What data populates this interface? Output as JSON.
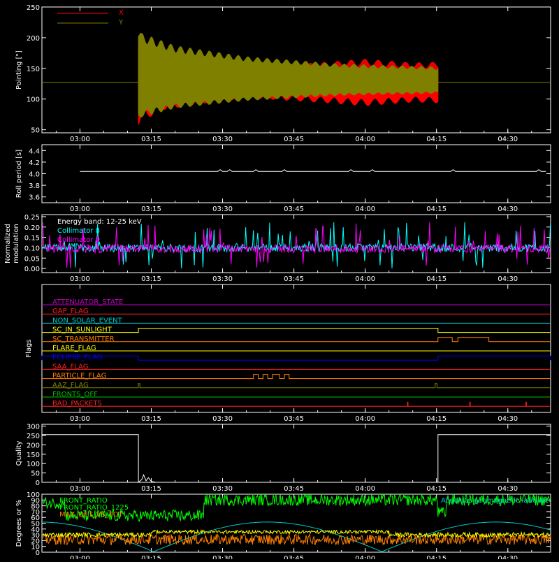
{
  "time_axis": {
    "ticks": [
      "03:00",
      "03:15",
      "03:30",
      "03:45",
      "04:00",
      "04:15",
      "04:30"
    ],
    "tick_minutes": [
      180,
      195,
      210,
      225,
      240,
      255,
      270
    ],
    "range_minutes": [
      172,
      279
    ]
  },
  "colors": {
    "axis": "#ffffff",
    "x_series": "#ff0000",
    "y_series": "#808000",
    "roll": "#ffffff",
    "coll8": "#00ffff",
    "coll9": "#ff00ff",
    "front_ratio": "#00ff00",
    "front_ratio_1225": "#ffff00",
    "max_det": "#ff8000",
    "lat": "#00c8c8"
  },
  "chart_data": [
    {
      "id": "pointing",
      "type": "line",
      "ylabel": "Pointing [\"]",
      "ylim": [
        45,
        250
      ],
      "yticks": [
        50,
        100,
        150,
        200,
        250
      ],
      "legend": [
        "X",
        "Y"
      ],
      "series": [
        {
          "name": "X",
          "baseline": 127,
          "envelope_x": [
            192.3,
            193,
            197,
            205,
            215,
            230,
            240,
            250,
            255.4
          ],
          "envelope_amp": [
            70,
            65,
            45,
            35,
            25,
            32,
            38,
            32,
            33
          ]
        },
        {
          "name": "Y",
          "baseline": 127,
          "envelope_x": [
            192.3,
            193,
            200,
            215,
            235,
            255.4
          ],
          "envelope_amp": [
            90,
            80,
            60,
            42,
            30,
            25
          ]
        }
      ]
    },
    {
      "id": "roll",
      "type": "line",
      "ylabel": "Roll period [s]",
      "ylim": [
        3.5,
        4.5
      ],
      "yticks": [
        3.6,
        3.8,
        4.0,
        4.2,
        4.4
      ],
      "series": [
        {
          "name": "",
          "x": [
            180,
            278
          ],
          "values": [
            4.04,
            4.04
          ]
        }
      ]
    },
    {
      "id": "modulation",
      "type": "line",
      "ylabel": "Normalized modulation",
      "ylim": [
        -0.02,
        0.26
      ],
      "yticks": [
        0.0,
        0.05,
        0.1,
        0.15,
        0.2,
        0.25
      ],
      "legend_title": "Energy band: 12-25 keV",
      "legend": [
        "Collimator 8",
        "Collimator 9"
      ],
      "series": [
        {
          "name": "Collimator 8",
          "baseline": 0.1,
          "noise": 0.02
        },
        {
          "name": "Collimator 9",
          "baseline": 0.095,
          "noise": 0.02
        }
      ]
    },
    {
      "id": "flags",
      "type": "table",
      "ylabel": "Flags",
      "rows": [
        {
          "label": "ATTENUATOR_STATE",
          "color": "#c000c0",
          "segments": []
        },
        {
          "label": "GAP_FLAG",
          "color": "#ff2020",
          "segments": []
        },
        {
          "label": "NON_SOLAR_EVENT",
          "color": "#00c8c8",
          "segments": []
        },
        {
          "label": "SC_IN_SUNLIGHT",
          "color": "#ffff00",
          "segments": [
            [
              192.3,
              255.3
            ]
          ]
        },
        {
          "label": "SC_TRANSMITTER",
          "color": "#ff8000",
          "segments": [
            [
              255.3,
              258.3
            ],
            [
              259.5,
              266
            ]
          ]
        },
        {
          "label": "FLARE_FLAG",
          "color": "#ffff00",
          "segments": []
        },
        {
          "label": "ECLIPSE_FLAG",
          "color": "#0000ff",
          "segments": [
            [
              172,
              192.3
            ],
            [
              255.3,
              279
            ]
          ]
        },
        {
          "label": "SAA_FLAG",
          "color": "#ff2020",
          "segments": []
        },
        {
          "label": "PARTICLE_FLAG",
          "color": "#ff8000",
          "segments": [
            [
              216.5,
              217.5
            ],
            [
              218.5,
              219.5
            ],
            [
              220.5,
              222
            ],
            [
              223,
              224
            ]
          ]
        },
        {
          "label": "AAZ_FLAG",
          "color": "#808000",
          "segments": [
            [
              192.3,
              192.6
            ],
            [
              254.7,
              255.1
            ]
          ]
        },
        {
          "label": "FRONTS_OFF",
          "color": "#00c000",
          "segments": []
        },
        {
          "label": "BAD_PACKETS",
          "color": "#ff2020",
          "segments": [
            [
              248.9,
              249.0
            ],
            [
              262,
              262.1
            ],
            [
              273.8,
              273.9
            ]
          ]
        }
      ]
    },
    {
      "id": "quality",
      "type": "line",
      "ylabel": "Quality",
      "ylim": [
        0,
        310
      ],
      "yticks": [
        0,
        50,
        100,
        150,
        200,
        250,
        300
      ],
      "series": [
        {
          "name": "",
          "x": [
            172,
            192.3,
            192.3,
            193,
            193.4,
            193.9,
            194.4,
            195.0,
            196,
            255.3,
            255.3,
            279
          ],
          "values": [
            255,
            255,
            0,
            15,
            40,
            8,
            25,
            5,
            0,
            0,
            255,
            255
          ]
        }
      ]
    },
    {
      "id": "ratios",
      "type": "line",
      "ylabel": "Degrees or %",
      "ylim": [
        0,
        100
      ],
      "yticks": [
        0,
        10,
        20,
        30,
        40,
        50,
        60,
        70,
        80,
        90,
        100
      ],
      "legend": [
        "FRONT_RATIO",
        "FRONT_RATIO_1225",
        "MAX_DET_VS_TOT"
      ],
      "right_legend": "Absolute geomagnetic latitude",
      "series": [
        {
          "name": "FRONT_RATIO",
          "segments": [
            [
              172,
              177,
              85
            ],
            [
              177,
              206,
              63
            ],
            [
              206,
              255.3,
              90
            ],
            [
              255.3,
              257,
              68
            ],
            [
              257,
              279,
              90
            ]
          ]
        },
        {
          "name": "FRONT_RATIO_1225",
          "segments": [
            [
              172,
              279,
              30
            ]
          ]
        },
        {
          "name": "MAX_DET_VS_TOT",
          "segments": [
            [
              172,
              279,
              22
            ]
          ]
        },
        {
          "name": "Absolute geomagnetic latitude",
          "peaks": [
            172,
            219.5,
            267
          ],
          "troughs": [
            195.5,
            243.5
          ],
          "max": 52,
          "min": 1
        }
      ]
    }
  ]
}
